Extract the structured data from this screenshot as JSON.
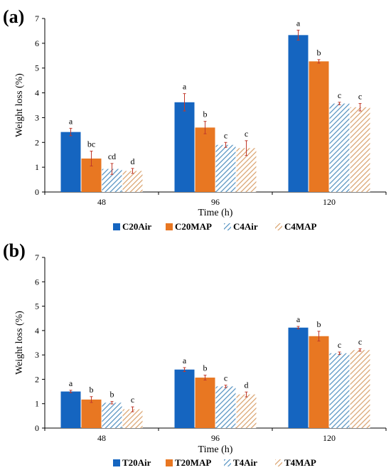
{
  "colors": {
    "series0": "#1565c0",
    "series1": "#e87722",
    "series2": "#6ba3c8",
    "series3": "#e0b48a"
  },
  "chart_data": [
    {
      "type": "bar",
      "panel": "(a)",
      "categories": [
        "48",
        "96",
        "120"
      ],
      "xlabel": "Time (h)",
      "ylabel": "Weight loss (%)",
      "ylim": [
        0,
        7
      ],
      "yticks": [
        0,
        1,
        2,
        3,
        4,
        5,
        6,
        7
      ],
      "legend_position": "bottom",
      "series": [
        {
          "name": "C20Air",
          "pattern": "solid",
          "values": [
            2.42,
            3.62,
            6.33
          ],
          "errors": [
            0.15,
            0.35,
            0.2
          ],
          "labels": [
            "a",
            "a",
            "a"
          ]
        },
        {
          "name": "C20MAP",
          "pattern": "solid",
          "values": [
            1.35,
            2.6,
            5.27
          ],
          "errors": [
            0.3,
            0.25,
            0.07
          ],
          "labels": [
            "bc",
            "b",
            "b"
          ]
        },
        {
          "name": "C4Air",
          "pattern": "hatch",
          "values": [
            0.93,
            1.9,
            3.57
          ],
          "errors": [
            0.22,
            0.1,
            0.05
          ],
          "labels": [
            "cd",
            "c",
            "c"
          ]
        },
        {
          "name": "C4MAP",
          "pattern": "hatch",
          "values": [
            0.85,
            1.77,
            3.42
          ],
          "errors": [
            0.1,
            0.3,
            0.15
          ],
          "labels": [
            "d",
            "c",
            "c"
          ]
        }
      ]
    },
    {
      "type": "bar",
      "panel": "(b)",
      "categories": [
        "48",
        "96",
        "120"
      ],
      "xlabel": "Time (h)",
      "ylabel": "Weight loss (%)",
      "ylim": [
        0,
        7
      ],
      "yticks": [
        0,
        1,
        2,
        3,
        4,
        5,
        6,
        7
      ],
      "legend_position": "bottom",
      "series": [
        {
          "name": "T20Air",
          "pattern": "solid",
          "values": [
            1.5,
            2.4,
            4.12
          ],
          "errors": [
            0.05,
            0.08,
            0.05
          ],
          "labels": [
            "a",
            "a",
            "a"
          ]
        },
        {
          "name": "T20MAP",
          "pattern": "solid",
          "values": [
            1.17,
            2.07,
            3.77
          ],
          "errors": [
            0.12,
            0.1,
            0.2
          ],
          "labels": [
            "b",
            "b",
            "b"
          ]
        },
        {
          "name": "T4Air",
          "pattern": "hatch",
          "values": [
            1.04,
            1.71,
            3.07
          ],
          "errors": [
            0.05,
            0.05,
            0.05
          ],
          "labels": [
            "b",
            "c",
            "c"
          ]
        },
        {
          "name": "T4MAP",
          "pattern": "hatch",
          "values": [
            0.77,
            1.38,
            3.2
          ],
          "errors": [
            0.1,
            0.1,
            0.05
          ],
          "labels": [
            "c",
            "d",
            "c"
          ]
        }
      ]
    }
  ]
}
